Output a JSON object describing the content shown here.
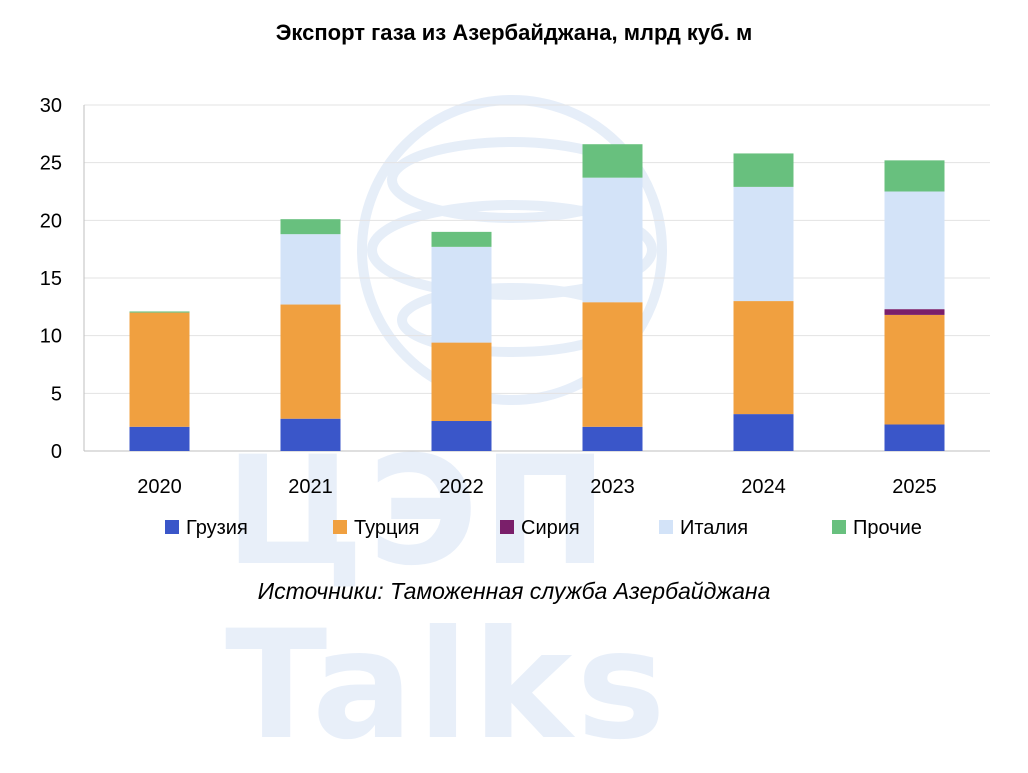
{
  "title": "Экспорт газа из Азербайджана, млрд куб. м",
  "source": "Источники: Таможенная служба Азербайджана",
  "watermark": "ЦЭП Talks",
  "chart_data": {
    "type": "bar",
    "stacked": true,
    "title": "Экспорт газа из Азербайджана, млрд куб. м",
    "categories": [
      "2020",
      "2021",
      "2022",
      "2023",
      "2024",
      "2025"
    ],
    "ylim": [
      0,
      30
    ],
    "yticks": [
      0,
      5,
      10,
      15,
      20,
      25,
      30
    ],
    "grid": true,
    "legend_position": "bottom",
    "series": [
      {
        "name": "Грузия",
        "color": "#3a56c9",
        "values": [
          2.1,
          2.8,
          2.6,
          2.1,
          3.2,
          2.3
        ]
      },
      {
        "name": "Турция",
        "color": "#f0a040",
        "values": [
          9.9,
          9.9,
          6.8,
          10.8,
          9.8,
          9.5
        ]
      },
      {
        "name": "Сирия",
        "color": "#7a1f6a",
        "values": [
          0,
          0,
          0,
          0,
          0,
          0.5
        ]
      },
      {
        "name": "Италия",
        "color": "#d3e3f8",
        "values": [
          0,
          6.1,
          8.3,
          10.8,
          9.9,
          10.2
        ]
      },
      {
        "name": "Прочие",
        "color": "#68c07e",
        "values": [
          0.1,
          1.3,
          1.3,
          2.9,
          2.9,
          2.7
        ]
      }
    ]
  }
}
